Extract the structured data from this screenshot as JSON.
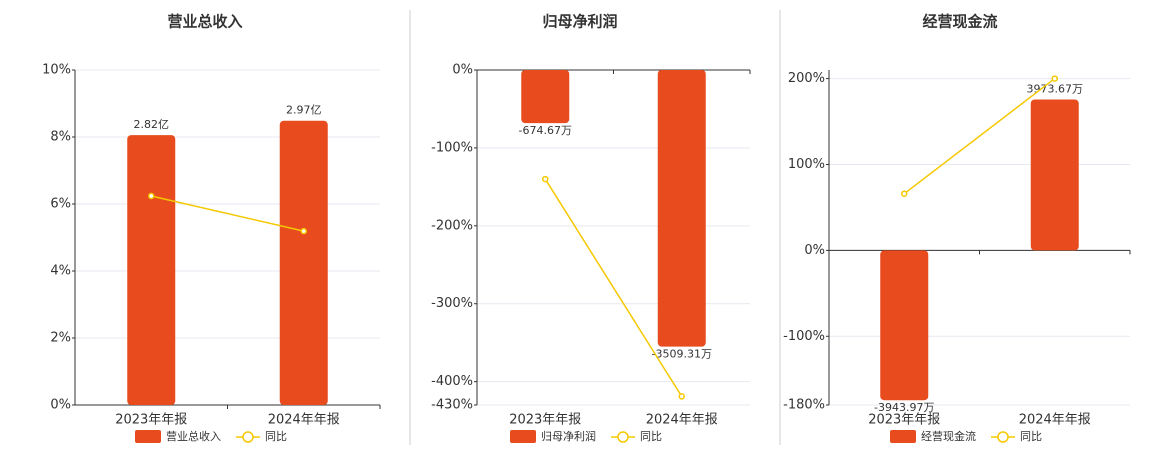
{
  "chart_data": [
    {
      "type": "bar",
      "title": "营业总收入",
      "categories": [
        "2023年年报",
        "2024年年报"
      ],
      "ylim": [
        0,
        10
      ],
      "yticks": [
        {
          "value": 0,
          "label": "0%"
        },
        {
          "value": 2,
          "label": "2%"
        },
        {
          "value": 4,
          "label": "4%"
        },
        {
          "value": 6,
          "label": "6%"
        },
        {
          "value": 8,
          "label": "8%"
        },
        {
          "value": 10,
          "label": "10%"
        }
      ],
      "y2lim": [
        0,
        3.5
      ],
      "grid": true,
      "series": [
        {
          "name": "营业总收入",
          "type": "bar",
          "axis": "y2",
          "color": "#e84c1e",
          "values": [
            2.82,
            2.97
          ],
          "value_labels": [
            "2.82亿",
            "2.97亿"
          ]
        },
        {
          "name": "同比",
          "type": "line",
          "color": "#f5c800",
          "values": [
            6.24,
            5.19
          ]
        }
      ]
    },
    {
      "type": "bar",
      "title": "归母净利润",
      "categories": [
        "2023年年报",
        "2024年年报"
      ],
      "ylim": [
        -430,
        0
      ],
      "yticks": [
        {
          "value": 0,
          "label": "0%"
        },
        {
          "value": -100,
          "label": "-100%"
        },
        {
          "value": -200,
          "label": "-200%"
        },
        {
          "value": -300,
          "label": "-300%"
        },
        {
          "value": -400,
          "label": "-400%"
        },
        {
          "value": -430,
          "label": "-430%"
        }
      ],
      "y2lim": [
        -4250,
        0
      ],
      "grid": true,
      "series": [
        {
          "name": "归母净利润",
          "type": "bar",
          "axis": "y2",
          "color": "#e84c1e",
          "values": [
            -674.67,
            -3509.31
          ],
          "value_labels": [
            "-674.67万",
            "-3509.31万"
          ]
        },
        {
          "name": "同比",
          "type": "line",
          "color": "#f5c800",
          "values": [
            -140,
            -419
          ]
        }
      ]
    },
    {
      "type": "bar",
      "title": "经营现金流",
      "categories": [
        "2023年年报",
        "2024年年报"
      ],
      "ylim": [
        -180,
        210
      ],
      "yticks": [
        {
          "value": -180,
          "label": "-180%"
        },
        {
          "value": -100,
          "label": "-100%"
        },
        {
          "value": 0,
          "label": "0%"
        },
        {
          "value": 100,
          "label": "100%"
        },
        {
          "value": 200,
          "label": "200%"
        }
      ],
      "y2lim": [
        -4070,
        4750
      ],
      "grid": true,
      "series": [
        {
          "name": "经营现金流",
          "type": "bar",
          "axis": "y2",
          "color": "#e84c1e",
          "values": [
            -3943.97,
            3973.67
          ],
          "value_labels": [
            "-3943.97万",
            "3973.67万"
          ]
        },
        {
          "name": "同比",
          "type": "line",
          "color": "#f5c800",
          "values": [
            66,
            200
          ]
        }
      ]
    }
  ]
}
